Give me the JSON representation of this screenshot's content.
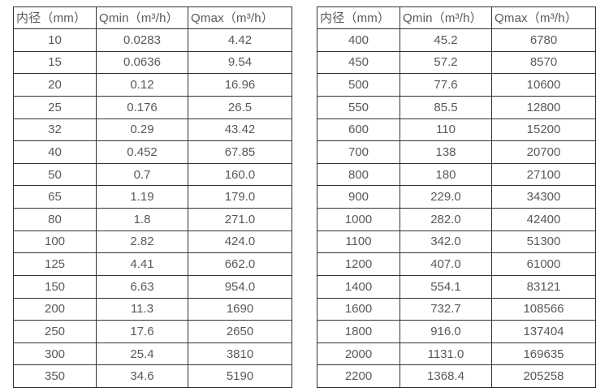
{
  "colors": {
    "border": "#333333",
    "text": "#595959",
    "background": "#ffffff"
  },
  "tables": [
    {
      "headers": [
        "内径（mm）",
        "Qmin（m³/h）",
        "Qmax（m³/h）"
      ],
      "rows": [
        [
          "10",
          "0.0283",
          "4.42"
        ],
        [
          "15",
          "0.0636",
          "9.54"
        ],
        [
          "20",
          "0.12",
          "16.96"
        ],
        [
          "25",
          "0.176",
          "26.5"
        ],
        [
          "32",
          "0.29",
          "43.42"
        ],
        [
          "40",
          "0.452",
          "67.85"
        ],
        [
          "50",
          "0.7",
          "160.0"
        ],
        [
          "65",
          "1.19",
          "179.0"
        ],
        [
          "80",
          "1.8",
          "271.0"
        ],
        [
          "100",
          "2.82",
          "424.0"
        ],
        [
          "125",
          "4.41",
          "662.0"
        ],
        [
          "150",
          "6.63",
          "954.0"
        ],
        [
          "200",
          "11.3",
          "1690"
        ],
        [
          "250",
          "17.6",
          "2650"
        ],
        [
          "300",
          "25.4",
          "3810"
        ],
        [
          "350",
          "34.6",
          "5190"
        ]
      ]
    },
    {
      "headers": [
        "内径（mm）",
        "Qmin（m³/h）",
        "Qmax（m³/h）"
      ],
      "rows": [
        [
          "400",
          "45.2",
          "6780"
        ],
        [
          "450",
          "57.2",
          "8570"
        ],
        [
          "500",
          "77.6",
          "10600"
        ],
        [
          "550",
          "85.5",
          "12800"
        ],
        [
          "600",
          "110",
          "15200"
        ],
        [
          "700",
          "138",
          "20700"
        ],
        [
          "800",
          "180",
          "27100"
        ],
        [
          "900",
          "229.0",
          "34300"
        ],
        [
          "1000",
          "282.0",
          "42400"
        ],
        [
          "1100",
          "342.0",
          "51300"
        ],
        [
          "1200",
          "407.0",
          "61000"
        ],
        [
          "1400",
          "554.1",
          "83121"
        ],
        [
          "1600",
          "732.7",
          "108566"
        ],
        [
          "1800",
          "916.0",
          "137404"
        ],
        [
          "2000",
          "1131.0",
          "169635"
        ],
        [
          "2200",
          "1368.4",
          "205258"
        ]
      ]
    }
  ]
}
